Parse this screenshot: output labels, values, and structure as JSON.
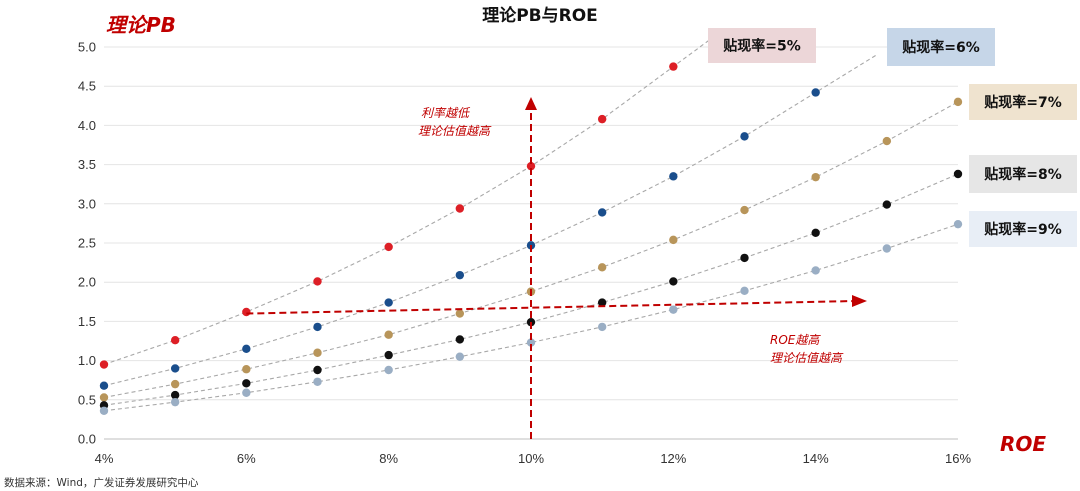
{
  "chart_data": {
    "type": "scatter",
    "title": "理论PB与ROE",
    "ylabel": "理论PB",
    "xlabel": "ROE",
    "xlim": [
      4,
      16
    ],
    "ylim": [
      0,
      5
    ],
    "x_ticks": [
      "4%",
      "6%",
      "8%",
      "10%",
      "12%",
      "14%",
      "16%"
    ],
    "y_ticks": [
      "0.0",
      "0.5",
      "1.0",
      "1.5",
      "2.0",
      "2.5",
      "3.0",
      "3.5",
      "4.0",
      "4.5",
      "5.0"
    ],
    "grid": "horizontal",
    "series": [
      {
        "name": "贴现率=5%",
        "color": "#dd1f26",
        "legend_bg": "#ecd6d8",
        "x": [
          4,
          5,
          6,
          7,
          8,
          9,
          10,
          11,
          12
        ],
        "y": [
          0.95,
          1.26,
          1.62,
          2.01,
          2.45,
          2.94,
          3.48,
          4.08,
          4.75
        ]
      },
      {
        "name": "贴现率=6%",
        "color": "#1a4e8c",
        "legend_bg": "#c6d6e8",
        "x": [
          4,
          5,
          6,
          7,
          8,
          9,
          10,
          11,
          12,
          13,
          14
        ],
        "y": [
          0.68,
          0.9,
          1.15,
          1.43,
          1.74,
          2.09,
          2.47,
          2.89,
          3.35,
          3.86,
          4.42
        ]
      },
      {
        "name": "贴现率=7%",
        "color": "#b8955a",
        "legend_bg": "#efe3cf",
        "x": [
          4,
          5,
          6,
          7,
          8,
          9,
          10,
          11,
          12,
          13,
          14,
          15,
          16
        ],
        "y": [
          0.53,
          0.7,
          0.89,
          1.1,
          1.33,
          1.6,
          1.88,
          2.19,
          2.54,
          2.92,
          3.34,
          3.8,
          4.3
        ]
      },
      {
        "name": "贴现率=8%",
        "color": "#111111",
        "legend_bg": "#e6e6e6",
        "x": [
          4,
          5,
          6,
          7,
          8,
          9,
          10,
          11,
          12,
          13,
          14,
          15,
          16
        ],
        "y": [
          0.43,
          0.56,
          0.71,
          0.88,
          1.07,
          1.27,
          1.49,
          1.74,
          2.01,
          2.31,
          2.63,
          2.99,
          3.38
        ]
      },
      {
        "name": "贴现率=9%",
        "color": "#9aaec4",
        "legend_bg": "#e8eef6",
        "x": [
          4,
          5,
          6,
          7,
          8,
          9,
          10,
          11,
          12,
          13,
          14,
          15,
          16
        ],
        "y": [
          0.36,
          0.47,
          0.59,
          0.73,
          0.88,
          1.05,
          1.23,
          1.43,
          1.65,
          1.89,
          2.15,
          2.43,
          2.74
        ]
      }
    ],
    "annotations": {
      "vertical": {
        "lines": [
          "利率越低",
          "理论估值越高"
        ]
      },
      "horizontal": {
        "lines": [
          "ROE越高",
          "理论估值越高"
        ]
      }
    }
  },
  "source": "数据来源：Wind，广发证券发展研究中心"
}
